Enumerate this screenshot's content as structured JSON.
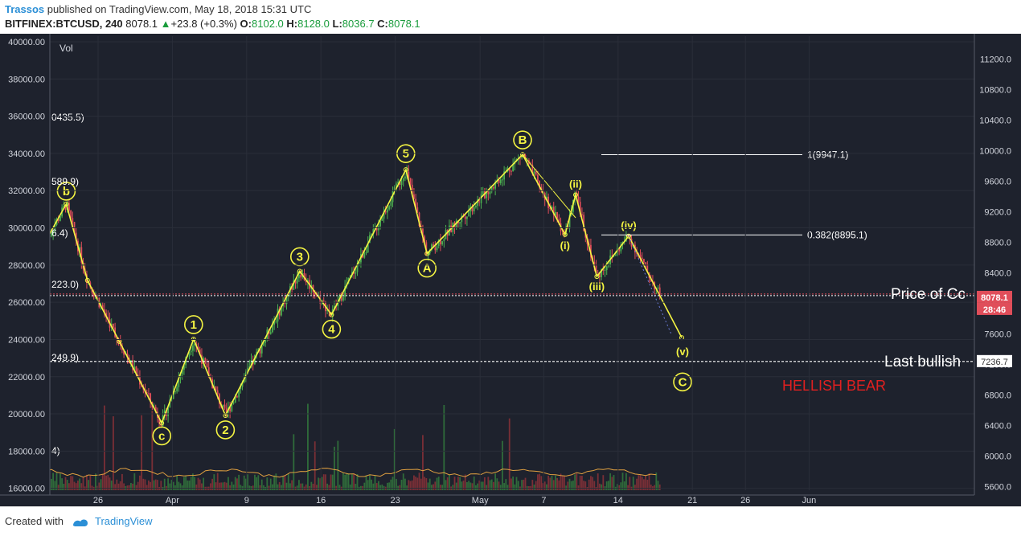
{
  "header": {
    "author": "Trassos",
    "published": " published on TradingView.com, May 18, 2018 15:31 UTC",
    "symbol": "BITFINEX:BTCUSD, 240",
    "last": "8078.1",
    "change": "+23.8 (+0.3%)",
    "o_label": "O:",
    "o_value": "8102.0",
    "h_label": "H:",
    "h_value": "8128.0",
    "l_label": "L:",
    "l_value": "8036.7",
    "c_label": "C:",
    "c_value": "8078.1"
  },
  "footer": {
    "created_with": "Created with",
    "brand": "TradingView"
  },
  "colors": {
    "background": "#1e222d",
    "up": "#4caf50",
    "down": "#e04e5a",
    "wave": "#f5f542",
    "label_text": "#ffffff",
    "bear_text": "#e02020",
    "price_badge": "#e04e5a"
  },
  "chart_data": {
    "type": "candlestick",
    "symbol": "BITFINEX:BTCUSD",
    "interval": "240",
    "x_ticks": [
      "26",
      "Apr",
      "9",
      "16",
      "23",
      "May",
      "7",
      "14",
      "21",
      "26",
      "Jun"
    ],
    "right_axis": {
      "ticks": [
        11200,
        10800,
        10400,
        10000,
        9600,
        9200,
        8800,
        8400,
        8000,
        7600,
        7200,
        6800,
        6400,
        6000,
        5600
      ],
      "range": [
        5550,
        11500
      ]
    },
    "left_axis": {
      "ticks": [
        "40000.00",
        "38000.00",
        "36000.00",
        "34000.00",
        "32000.00",
        "30000.00",
        "28000.00",
        "26000.00",
        "24000.00",
        "22000.00",
        "20000.00",
        "18000.00",
        "16000.00"
      ],
      "range": [
        15900,
        40300
      ]
    },
    "volume_label": "Vol",
    "left_clipped_labels": [
      "0435.5)",
      "589.9)",
      "6.4)",
      "223.0)",
      "249.9)",
      "4)"
    ],
    "fib_levels": [
      {
        "label": "1(9947.1)",
        "value": 9947.1
      },
      {
        "label": "0.382(8895.1)",
        "value": 8895.1
      }
    ],
    "horizontal_lines": [
      {
        "label": "Price of Cc",
        "value": 8110
      },
      {
        "label": "Last bullish",
        "value": 7236.7
      }
    ],
    "price_badges": {
      "last_price": "8078.1",
      "countdown": "28:46",
      "level": "7236.7"
    },
    "wave_points": [
      {
        "label": "b",
        "date": "Mar 23",
        "value": 9300
      },
      {
        "label": "c",
        "date": "Apr 1",
        "value": 6430
      },
      {
        "label": "1",
        "date": "Apr 4",
        "value": 7530
      },
      {
        "label": "2",
        "date": "Apr 7",
        "value": 6530
      },
      {
        "label": "3",
        "date": "Apr 14",
        "value": 8420
      },
      {
        "label": "4",
        "date": "Apr 17",
        "value": 7850
      },
      {
        "label": "5",
        "date": "Apr 24",
        "value": 9750
      },
      {
        "label": "A",
        "date": "Apr 26",
        "value": 8650
      },
      {
        "label": "B",
        "date": "May 5",
        "value": 9950
      },
      {
        "label": "(i)",
        "date": "May 9",
        "value": 8900
      },
      {
        "label": "(ii)",
        "date": "May 10",
        "value": 9420
      },
      {
        "label": "(iii)",
        "date": "May 12",
        "value": 8350
      },
      {
        "label": "(iv)",
        "date": "May 15",
        "value": 8880
      },
      {
        "label": "(v)",
        "date": "May 20",
        "value": 7550
      },
      {
        "label": "C",
        "date": "May 20",
        "value": 7200
      }
    ],
    "wave_path_a": [
      [
        "Mar 21",
        8800
      ],
      [
        "Mar 23",
        9300
      ],
      [
        "Mar 25",
        8300
      ],
      [
        "Mar 28",
        7500
      ],
      [
        "Apr 1",
        6430
      ],
      [
        "Apr 4",
        7530
      ],
      [
        "Apr 7",
        6530
      ],
      [
        "Apr 14",
        8420
      ],
      [
        "Apr 17",
        7850
      ],
      [
        "Apr 24",
        9750
      ],
      [
        "Apr 26",
        8650
      ],
      [
        "May 5",
        9950
      ],
      [
        "May 9",
        8900
      ],
      [
        "May 10",
        9420
      ],
      [
        "May 12",
        8350
      ],
      [
        "May 15",
        8880
      ],
      [
        "May 20",
        7550
      ]
    ],
    "wave_path_b": [
      [
        "May 5",
        9950
      ],
      [
        "May 10",
        9120
      ]
    ],
    "wave_path_c": [
      [
        "May 15",
        8880
      ],
      [
        "May 19",
        7600
      ]
    ],
    "annotation": "HELLISH BEAR"
  }
}
